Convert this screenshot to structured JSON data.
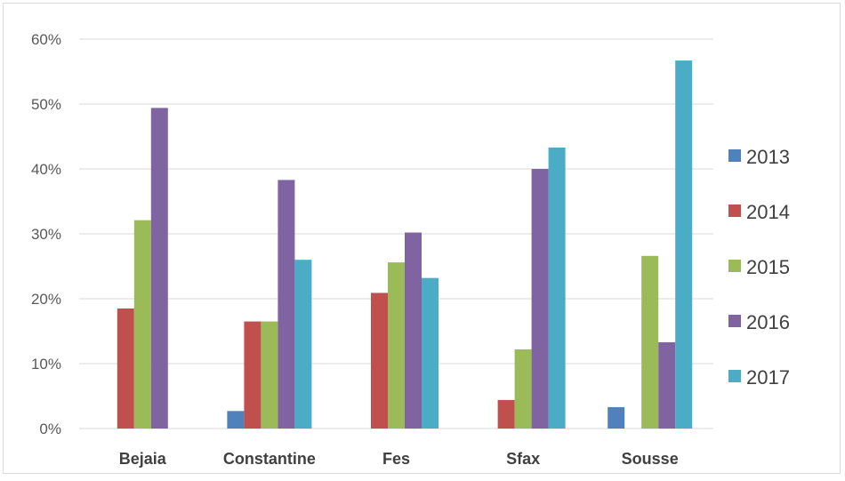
{
  "chart_data": {
    "type": "bar",
    "title": "",
    "xlabel": "",
    "ylabel": "",
    "categories": [
      "Bejaia",
      "Constantine",
      "Fes",
      "Sfax",
      "Sousse"
    ],
    "ylim": [
      0,
      0.6
    ],
    "yticks": [
      {
        "value": 0,
        "label": "0%"
      },
      {
        "value": 0.1,
        "label": "10%"
      },
      {
        "value": 0.2,
        "label": "20%"
      },
      {
        "value": 0.3,
        "label": "30%"
      },
      {
        "value": 0.4,
        "label": "40%"
      },
      {
        "value": 0.5,
        "label": "50%"
      },
      {
        "value": 0.6,
        "label": "60%"
      }
    ],
    "grid": true,
    "legend_position": "right",
    "series": [
      {
        "name": "2013",
        "color": "#4f81bd",
        "values": [
          0,
          0.027,
          0,
          0,
          0.033
        ]
      },
      {
        "name": "2014",
        "color": "#c0504d",
        "values": [
          0.185,
          0.165,
          0.209,
          0.044,
          0
        ]
      },
      {
        "name": "2015",
        "color": "#9bbb59",
        "values": [
          0.321,
          0.165,
          0.256,
          0.122,
          0.266
        ]
      },
      {
        "name": "2016",
        "color": "#8064a2",
        "values": [
          0.494,
          0.383,
          0.302,
          0.4,
          0.133
        ]
      },
      {
        "name": "2017",
        "color": "#4bacc6",
        "values": [
          0,
          0.26,
          0.232,
          0.433,
          0.567
        ]
      }
    ]
  }
}
